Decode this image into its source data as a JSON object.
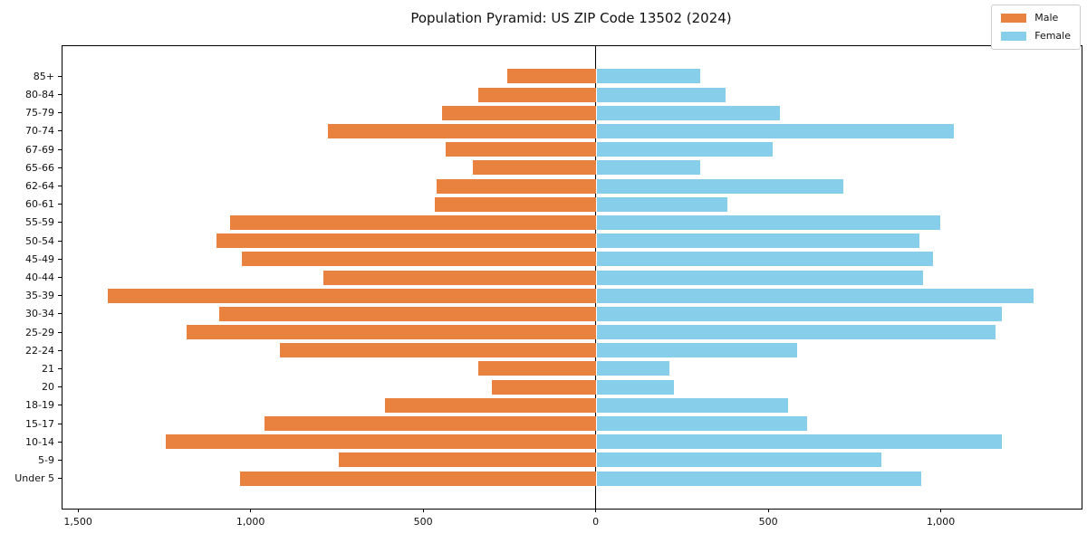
{
  "title": "Population Pyramid: US ZIP Code 13502 (2024)",
  "legend": {
    "male_label": "Male",
    "female_label": "Female"
  },
  "colors": {
    "male": "#E8823E",
    "female": "#87CEEB",
    "axis": "#000000",
    "legend_border": "#CCCCCC",
    "background": "#FFFFFF"
  },
  "chart_data": {
    "type": "bar",
    "subtype": "population-pyramid",
    "title": "Population Pyramid: US ZIP Code 13502 (2024)",
    "categories_top_to_bottom": [
      "85+",
      "80-84",
      "75-79",
      "70-74",
      "67-69",
      "65-66",
      "62-64",
      "60-61",
      "55-59",
      "50-54",
      "45-49",
      "40-44",
      "35-39",
      "30-34",
      "25-29",
      "22-24",
      "21",
      "20",
      "18-19",
      "15-17",
      "10-14",
      "5-9",
      "Under 5"
    ],
    "series": [
      {
        "name": "Male",
        "side": "left",
        "color": "#E8823E",
        "values": [
          255,
          340,
          445,
          775,
          435,
          355,
          460,
          465,
          1060,
          1100,
          1025,
          790,
          1415,
          1090,
          1185,
          915,
          340,
          300,
          610,
          960,
          1245,
          745,
          1030
        ]
      },
      {
        "name": "Female",
        "side": "right",
        "color": "#87CEEB",
        "values": [
          300,
          375,
          530,
          1035,
          510,
          300,
          715,
          380,
          995,
          935,
          975,
          945,
          1265,
          1175,
          1155,
          580,
          210,
          225,
          555,
          610,
          1175,
          825,
          940
        ]
      }
    ],
    "xlim": [
      -1545,
      1408
    ],
    "xticks": [
      -1500,
      -1000,
      -500,
      0,
      500,
      1000
    ],
    "xtick_labels": [
      "1,500",
      "1,000",
      "500",
      "0",
      "500",
      "1,000"
    ],
    "xlabel": "",
    "ylabel": "",
    "grid": false,
    "legend_position": "upper right"
  }
}
